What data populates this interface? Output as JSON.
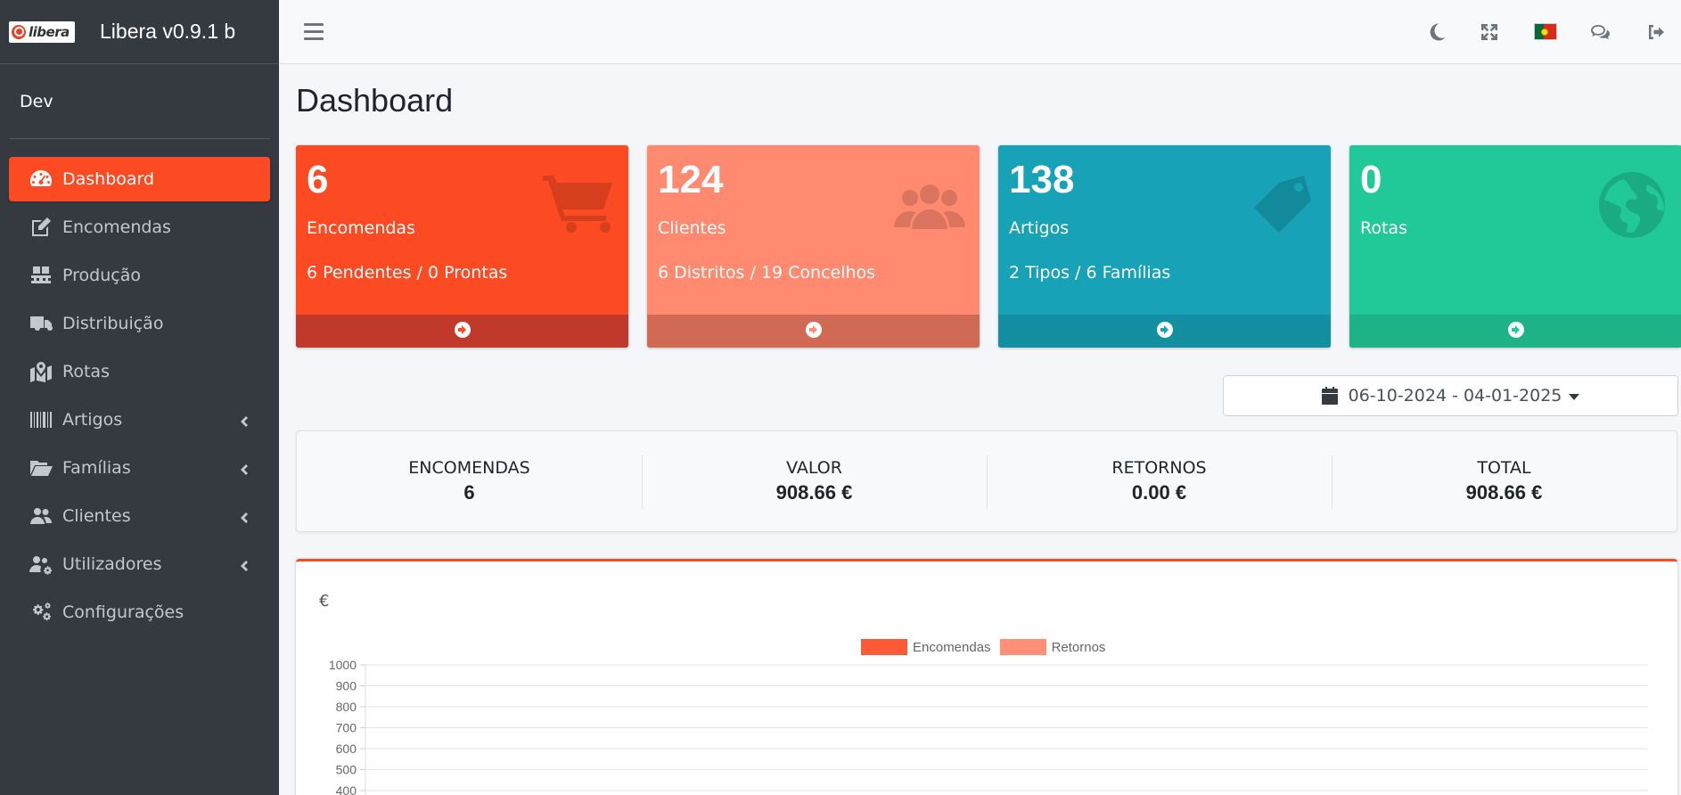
{
  "app": {
    "brand_logo_text": "libera",
    "brand_title": "Libera v0.9.1 b",
    "user_name": "Dev"
  },
  "sidebar": {
    "items": [
      {
        "label": "Dashboard",
        "icon": "tachometer-icon",
        "active": true,
        "has_submenu": false
      },
      {
        "label": "Encomendas",
        "icon": "edit-icon",
        "active": false,
        "has_submenu": false
      },
      {
        "label": "Produção",
        "icon": "pallet-icon",
        "active": false,
        "has_submenu": false
      },
      {
        "label": "Distribuição",
        "icon": "truck-icon",
        "active": false,
        "has_submenu": false
      },
      {
        "label": "Rotas",
        "icon": "map-icon",
        "active": false,
        "has_submenu": false
      },
      {
        "label": "Artigos",
        "icon": "barcode-icon",
        "active": false,
        "has_submenu": true
      },
      {
        "label": "Famílias",
        "icon": "folder-open-icon",
        "active": false,
        "has_submenu": true
      },
      {
        "label": "Clientes",
        "icon": "users-icon",
        "active": false,
        "has_submenu": true
      },
      {
        "label": "Utilizadores",
        "icon": "users-cog-icon",
        "active": false,
        "has_submenu": true
      },
      {
        "label": "Configurações",
        "icon": "cogs-icon",
        "active": false,
        "has_submenu": false
      }
    ]
  },
  "topbar": {
    "icons": [
      "menu-icon",
      "moon-icon",
      "expand-icon",
      "portugal-flag-icon",
      "comments-icon",
      "sign-out-icon"
    ]
  },
  "page": {
    "title": "Dashboard"
  },
  "boxes": [
    {
      "number": "6",
      "title": "Encomendas",
      "subtitle": "6 Pendentes / 0 Prontas",
      "color": "#fc4a23",
      "icon": "shopping-cart-icon"
    },
    {
      "number": "124",
      "title": "Clientes",
      "subtitle": "6 Distritos / 19 Concelhos",
      "color": "#ff8a70",
      "icon": "users-icon"
    },
    {
      "number": "138",
      "title": "Artigos",
      "subtitle": "2 Tipos / 6 Famílias",
      "color": "#17a2b8",
      "icon": "tag-icon"
    },
    {
      "number": "0",
      "title": "Rotas",
      "subtitle": "",
      "color": "#20c997",
      "icon": "globe-icon"
    }
  ],
  "daterange": {
    "value": "06-10-2024 - 04-01-2025"
  },
  "stats": [
    {
      "label": "ENCOMENDAS",
      "value": "6"
    },
    {
      "label": "VALOR",
      "value": "908.66 €"
    },
    {
      "label": "RETORNOS",
      "value": "0.00 €"
    },
    {
      "label": "TOTAL",
      "value": "908.66 €"
    }
  ],
  "chart": {
    "currency_label": "€"
  },
  "chart_data": {
    "type": "bar",
    "title": "",
    "ylabel": "€",
    "ylim_visible": [
      400,
      1000
    ],
    "yticks": [
      1000,
      900,
      800,
      700,
      600,
      500,
      400
    ],
    "series": [
      {
        "name": "Encomendas",
        "color": "#fc5a35"
      },
      {
        "name": "Retornos",
        "color": "#ff8f75"
      }
    ],
    "grid": true,
    "legend_position": "top-center"
  }
}
